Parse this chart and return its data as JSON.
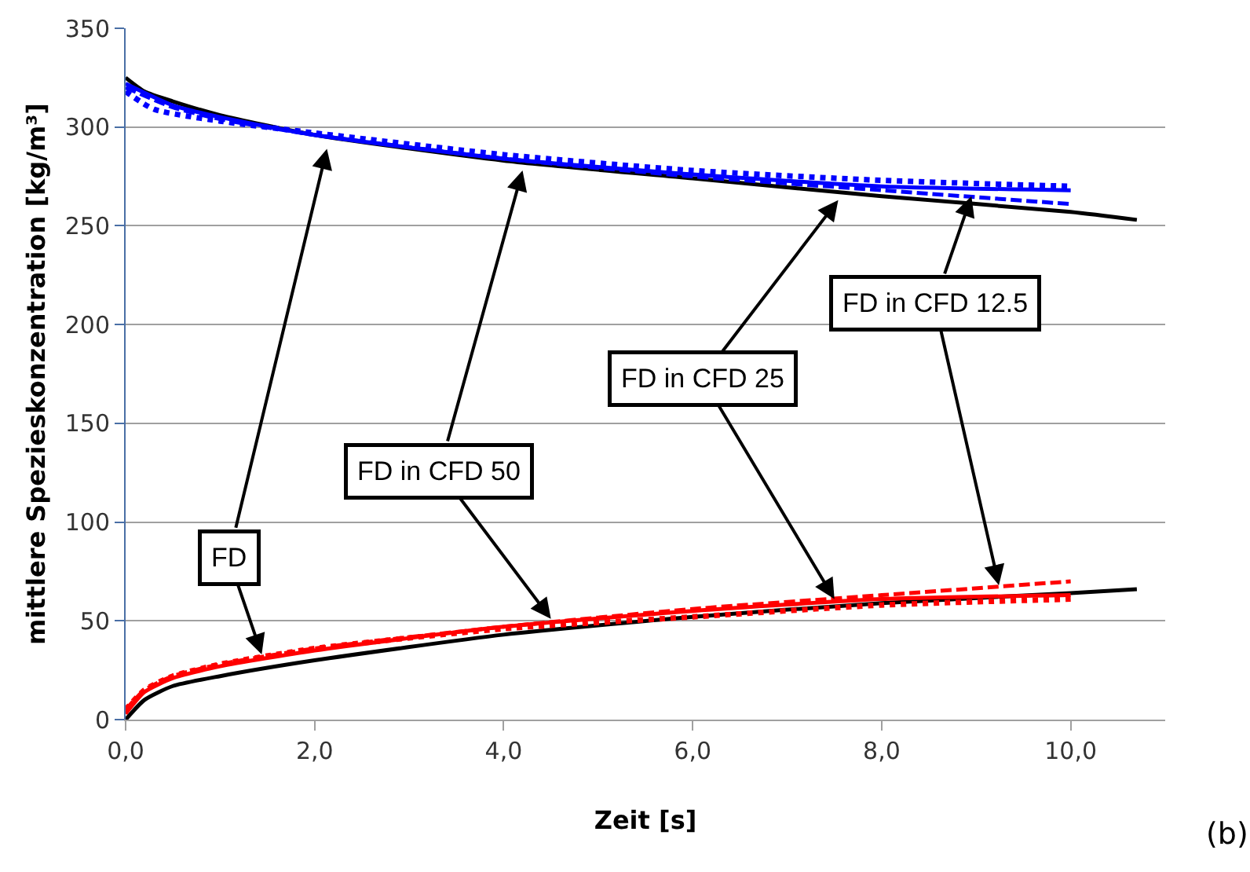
{
  "chart_data": {
    "type": "line",
    "xlabel": "Zeit [s]",
    "ylabel": "mittlere Spezieskonzentration [kg/m³]",
    "xlim": [
      0,
      11
    ],
    "xticks": [
      {
        "value": 0,
        "label": "0,0"
      },
      {
        "value": 2,
        "label": "2,0"
      },
      {
        "value": 4,
        "label": "4,0"
      },
      {
        "value": 6,
        "label": "6,0"
      },
      {
        "value": 8,
        "label": "8,0"
      },
      {
        "value": 10,
        "label": "10,0"
      }
    ],
    "ylim": [
      0,
      350
    ],
    "yticks": [
      0,
      50,
      100,
      150,
      200,
      250,
      300,
      350
    ],
    "grid": "y",
    "series": [
      {
        "color": "#000000",
        "line_style": "solid",
        "x": [
          0,
          0.2,
          0.5,
          1,
          2,
          4,
          6,
          8,
          10,
          10.7
        ],
        "values": [
          325,
          318,
          313,
          306,
          296,
          283,
          274,
          265,
          257,
          253
        ]
      },
      {
        "color": "#0000ff",
        "line_style": "solid",
        "x": [
          0,
          0.5,
          1,
          2,
          4,
          6,
          8,
          10
        ],
        "values": [
          322,
          311,
          305,
          296,
          284,
          276,
          270,
          268
        ]
      },
      {
        "color": "#0000ff",
        "line_style": "dashed",
        "x": [
          0,
          0.5,
          1,
          2,
          4,
          6,
          8,
          10
        ],
        "values": [
          320,
          310,
          304,
          296,
          284,
          275,
          268,
          261
        ]
      },
      {
        "color": "#0000ff",
        "line_style": "dotted",
        "x": [
          0,
          0.3,
          1,
          2,
          4,
          6,
          8,
          10
        ],
        "values": [
          318,
          309,
          303,
          297,
          286,
          278,
          273,
          270
        ]
      },
      {
        "color": "#000000",
        "line_style": "solid",
        "x": [
          0,
          0.2,
          0.5,
          1,
          2,
          4,
          6,
          8,
          10,
          10.7
        ],
        "values": [
          0,
          10,
          17,
          22,
          30,
          43,
          52,
          59,
          64,
          66
        ]
      },
      {
        "color": "#ff0000",
        "line_style": "solid",
        "x": [
          0,
          0.2,
          0.5,
          1,
          2,
          4,
          6,
          8,
          10
        ],
        "values": [
          3,
          14,
          21,
          27,
          35,
          47,
          55,
          61,
          63
        ]
      },
      {
        "color": "#ff0000",
        "line_style": "dashed",
        "x": [
          0,
          0.2,
          0.5,
          1,
          2,
          4,
          6,
          8,
          10
        ],
        "values": [
          5,
          15,
          22,
          28,
          36,
          47,
          56,
          63,
          70
        ]
      },
      {
        "color": "#ff0000",
        "line_style": "dotted",
        "x": [
          0,
          0.2,
          0.5,
          1,
          2,
          4,
          6,
          8,
          10
        ],
        "values": [
          5,
          15,
          22,
          28,
          36,
          46,
          52,
          58,
          61
        ]
      }
    ],
    "annotations": [
      {
        "text": "FD",
        "x": 1.44,
        "y": 33
      },
      {
        "text": "FD in CFD 50",
        "x": 4.5,
        "y": 51
      },
      {
        "text": "FD in CFD 25",
        "x": 7.5,
        "y": 61
      },
      {
        "text": "FD in CFD 12.5",
        "x": 9.24,
        "y": 68
      },
      "(b)"
    ]
  }
}
